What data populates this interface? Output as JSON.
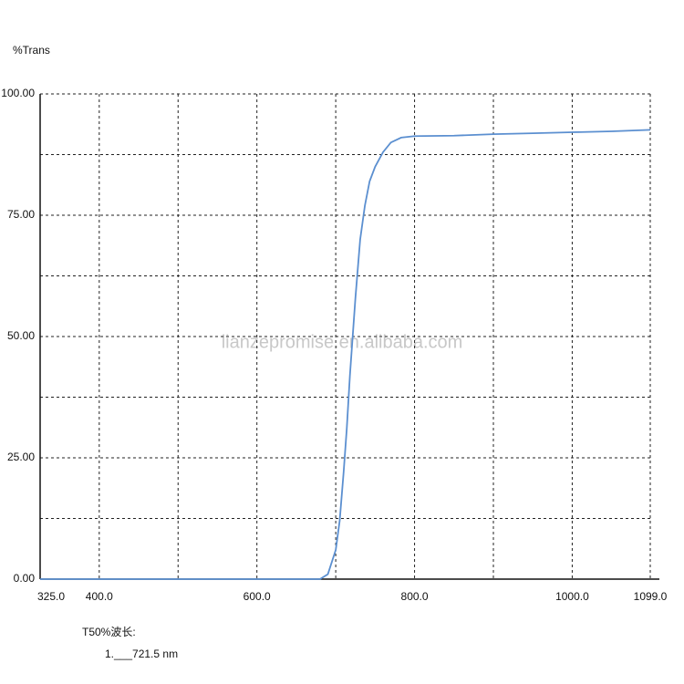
{
  "chart_data": {
    "type": "line",
    "y_label": "%Trans",
    "watermark": "lianzepromise.en.alibaba.com",
    "annotations": [
      "T50%波长:",
      "1.___721.5 nm"
    ],
    "x": [
      325,
      400,
      500,
      600,
      680,
      690,
      700,
      705,
      710,
      714,
      718,
      721.5,
      725,
      731,
      737,
      743,
      750,
      760,
      770,
      783,
      800,
      850,
      900,
      950,
      1000,
      1050,
      1099
    ],
    "series": [
      {
        "name": "%Trans",
        "color": "#5b8fd0",
        "values": [
          0,
          0,
          0,
          0,
          0,
          1,
          6,
          12,
          22,
          31,
          42,
          50,
          58,
          70,
          77,
          82,
          85,
          88,
          90,
          91,
          91.3,
          91.4,
          91.7,
          91.9,
          92.1,
          92.3,
          92.6
        ]
      }
    ],
    "xlim": [
      325,
      1099
    ],
    "ylim": [
      0,
      100
    ],
    "xticks": [
      {
        "value": 325,
        "label": "325.0"
      },
      {
        "value": 400,
        "label": "400.0"
      },
      {
        "value": 600,
        "label": "600.0"
      },
      {
        "value": 800,
        "label": "800.0"
      },
      {
        "value": 1000,
        "label": "1000.0"
      },
      {
        "value": 1099,
        "label": "1099.0"
      }
    ],
    "minor_xticks": [
      500,
      700,
      900
    ],
    "yticks": [
      {
        "value": 0,
        "label": "0.00"
      },
      {
        "value": 25,
        "label": "25.00"
      },
      {
        "value": 50,
        "label": "50.00"
      },
      {
        "value": 75,
        "label": "75.00"
      },
      {
        "value": 100,
        "label": "100.00"
      }
    ],
    "minor_yticks": [
      12.5,
      37.5,
      62.5,
      87.5
    ],
    "grid": true
  }
}
